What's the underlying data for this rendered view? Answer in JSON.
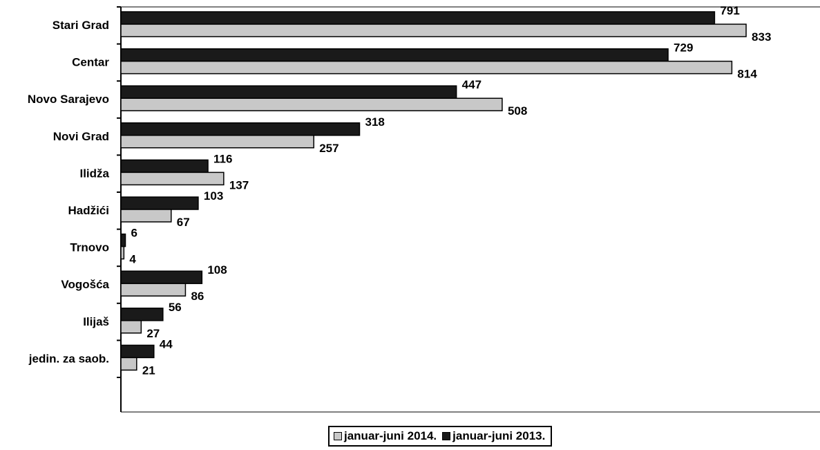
{
  "colors": {
    "series_2014": "#c8c8c8",
    "series_2013": "#1a1a1a",
    "axis": "#808080",
    "stroke": "#000000"
  },
  "chart_data": {
    "type": "bar",
    "orientation": "horizontal",
    "categories": [
      "Stari Grad",
      "Centar",
      "Novo Sarajevo",
      "Novi Grad",
      "Ilidža",
      "Hadžići",
      "Trnovo",
      "Vogošća",
      "Ilijaš",
      "jedin. za saob."
    ],
    "series": [
      {
        "name": "januar-juni 2013.",
        "color": "#1a1a1a",
        "values": [
          791,
          729,
          447,
          318,
          116,
          103,
          6,
          108,
          56,
          44
        ]
      },
      {
        "name": "januar-juni 2014.",
        "color": "#c8c8c8",
        "values": [
          833,
          814,
          508,
          257,
          137,
          67,
          4,
          86,
          27,
          21
        ]
      }
    ],
    "xlim": [
      0,
      900
    ],
    "grid": false,
    "legend_position": "bottom",
    "data_labels": true
  },
  "legend": {
    "items": [
      {
        "label": "januar-juni 2014.",
        "swatch": "light"
      },
      {
        "label": "januar-juni 2013.",
        "swatch": "dark"
      }
    ]
  }
}
